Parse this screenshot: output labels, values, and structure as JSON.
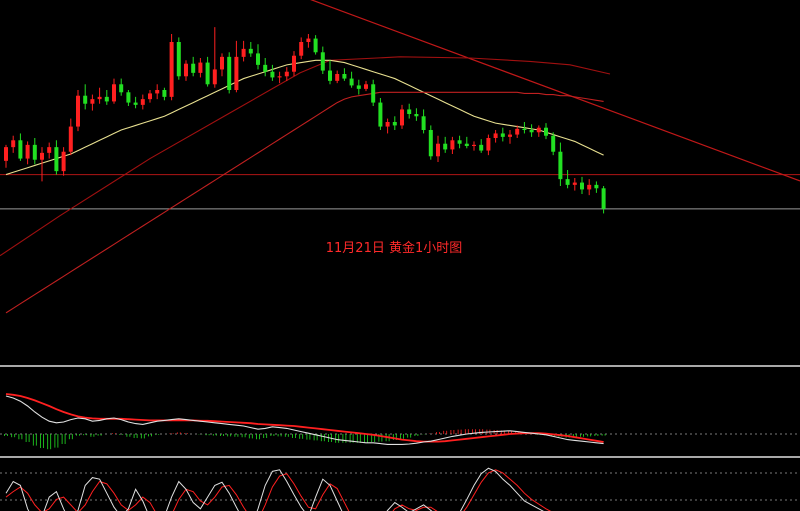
{
  "chart_data": {
    "type": "candlestick",
    "title": "11月21日 黄金1小时图",
    "colors": {
      "background": "#000000",
      "up": "#ff2020",
      "down": "#22e022",
      "ma_short": "#e8e090",
      "ma_mid": "#c02020",
      "ma_long": "#a01010",
      "trendline": "#c01818",
      "support": "#b01515",
      "level": "#9a9a9a",
      "separator": "#a8a8a8",
      "macd_dif": "#e0e0e0",
      "macd_dea": "#ff2020",
      "kdj_k": "#e0e0e0",
      "kdj_d": "#ff2020"
    },
    "price_levels": {
      "trendline_start": 1484.0,
      "trendline_end": 1468.0,
      "support": 1468.6,
      "current": 1465.6
    },
    "candles": [
      [
        1469.8,
        1471.2,
        1469.2,
        1471.0
      ],
      [
        1471.0,
        1472.0,
        1470.5,
        1471.6
      ],
      [
        1471.6,
        1472.2,
        1469.8,
        1470.0
      ],
      [
        1470.0,
        1471.5,
        1469.5,
        1471.2
      ],
      [
        1471.2,
        1471.8,
        1469.5,
        1469.9
      ],
      [
        1469.9,
        1471.0,
        1468.0,
        1470.5
      ],
      [
        1470.5,
        1471.4,
        1470.0,
        1471.0
      ],
      [
        1471.0,
        1471.6,
        1468.6,
        1468.9
      ],
      [
        1468.9,
        1471.0,
        1468.5,
        1470.6
      ],
      [
        1470.6,
        1473.5,
        1470.3,
        1472.8
      ],
      [
        1472.8,
        1476.0,
        1472.4,
        1475.5
      ],
      [
        1475.5,
        1476.5,
        1474.3,
        1474.8
      ],
      [
        1474.8,
        1475.6,
        1474.2,
        1475.2
      ],
      [
        1475.2,
        1476.2,
        1474.8,
        1475.4
      ],
      [
        1475.4,
        1476.0,
        1474.7,
        1475.0
      ],
      [
        1475.0,
        1477.0,
        1474.8,
        1476.5
      ],
      [
        1476.5,
        1477.0,
        1475.5,
        1475.8
      ],
      [
        1475.8,
        1476.0,
        1474.6,
        1474.9
      ],
      [
        1474.9,
        1475.4,
        1474.4,
        1474.7
      ],
      [
        1474.7,
        1475.6,
        1474.3,
        1475.2
      ],
      [
        1475.2,
        1476.0,
        1474.9,
        1475.7
      ],
      [
        1475.7,
        1476.5,
        1475.2,
        1476.0
      ],
      [
        1476.0,
        1476.2,
        1475.1,
        1475.4
      ],
      [
        1475.4,
        1480.9,
        1475.1,
        1480.2
      ],
      [
        1480.2,
        1480.6,
        1476.9,
        1477.2
      ],
      [
        1477.2,
        1478.6,
        1476.8,
        1478.3
      ],
      [
        1478.3,
        1478.9,
        1477.2,
        1477.5
      ],
      [
        1477.5,
        1478.8,
        1477.1,
        1478.4
      ],
      [
        1478.4,
        1478.9,
        1476.3,
        1476.5
      ],
      [
        1476.5,
        1481.5,
        1476.2,
        1477.8
      ],
      [
        1477.8,
        1479.2,
        1477.2,
        1478.9
      ],
      [
        1478.9,
        1479.3,
        1475.7,
        1476.0
      ],
      [
        1476.0,
        1480.3,
        1475.8,
        1478.9
      ],
      [
        1478.9,
        1480.3,
        1478.5,
        1479.6
      ],
      [
        1479.6,
        1480.2,
        1478.9,
        1479.2
      ],
      [
        1479.2,
        1480.0,
        1477.8,
        1478.2
      ],
      [
        1478.2,
        1478.8,
        1477.2,
        1477.6
      ],
      [
        1477.6,
        1478.2,
        1476.8,
        1477.1
      ],
      [
        1477.1,
        1477.6,
        1476.6,
        1477.2
      ],
      [
        1477.2,
        1478.0,
        1476.8,
        1477.6
      ],
      [
        1477.6,
        1479.4,
        1477.2,
        1479.0
      ],
      [
        1479.0,
        1480.6,
        1478.7,
        1480.2
      ],
      [
        1480.2,
        1480.9,
        1479.7,
        1480.5
      ],
      [
        1480.5,
        1480.8,
        1479.1,
        1479.3
      ],
      [
        1479.3,
        1479.8,
        1477.4,
        1477.7
      ],
      [
        1477.7,
        1478.6,
        1476.5,
        1476.8
      ],
      [
        1476.8,
        1477.7,
        1476.6,
        1477.4
      ],
      [
        1477.4,
        1477.9,
        1476.8,
        1477.0
      ],
      [
        1477.0,
        1477.6,
        1476.2,
        1476.4
      ],
      [
        1476.4,
        1476.9,
        1475.6,
        1476.1
      ],
      [
        1476.1,
        1476.8,
        1475.9,
        1476.5
      ],
      [
        1476.5,
        1476.9,
        1474.6,
        1474.9
      ],
      [
        1474.9,
        1475.3,
        1472.5,
        1472.8
      ],
      [
        1472.8,
        1473.5,
        1472.2,
        1473.2
      ],
      [
        1473.2,
        1473.7,
        1472.5,
        1472.9
      ],
      [
        1472.9,
        1474.7,
        1472.6,
        1474.3
      ],
      [
        1474.3,
        1474.8,
        1473.5,
        1473.9
      ],
      [
        1473.9,
        1474.4,
        1473.3,
        1473.7
      ],
      [
        1473.7,
        1474.3,
        1472.2,
        1472.5
      ],
      [
        1472.5,
        1472.9,
        1469.9,
        1470.2
      ],
      [
        1470.2,
        1472.0,
        1469.7,
        1471.3
      ],
      [
        1471.3,
        1471.9,
        1470.5,
        1470.8
      ],
      [
        1470.8,
        1471.9,
        1470.4,
        1471.6
      ],
      [
        1471.6,
        1472.0,
        1470.9,
        1471.3
      ],
      [
        1471.3,
        1471.9,
        1470.9,
        1471.1
      ],
      [
        1471.1,
        1471.5,
        1470.7,
        1471.2
      ],
      [
        1471.2,
        1471.7,
        1470.5,
        1470.7
      ],
      [
        1470.7,
        1472.1,
        1470.3,
        1471.8
      ],
      [
        1471.8,
        1472.5,
        1471.4,
        1472.2
      ],
      [
        1472.2,
        1472.7,
        1471.5,
        1471.9
      ],
      [
        1471.9,
        1472.5,
        1471.3,
        1472.1
      ],
      [
        1472.1,
        1472.9,
        1471.8,
        1472.6
      ],
      [
        1472.6,
        1473.2,
        1472.2,
        1472.5
      ],
      [
        1472.5,
        1473.0,
        1471.9,
        1472.3
      ],
      [
        1472.3,
        1472.9,
        1471.9,
        1472.7
      ],
      [
        1472.7,
        1473.1,
        1471.7,
        1472.0
      ],
      [
        1472.0,
        1472.3,
        1470.3,
        1470.6
      ],
      [
        1470.6,
        1471.4,
        1467.6,
        1468.2
      ],
      [
        1468.2,
        1469.0,
        1467.4,
        1467.7
      ],
      [
        1467.7,
        1468.3,
        1467.2,
        1467.9
      ],
      [
        1467.9,
        1468.4,
        1466.9,
        1467.3
      ],
      [
        1467.3,
        1468.2,
        1466.8,
        1467.7
      ],
      [
        1467.7,
        1468.0,
        1467.0,
        1467.4
      ],
      [
        1467.4,
        1467.6,
        1465.2,
        1465.6
      ]
    ],
    "series": [
      {
        "key": "ma_short",
        "values": [
          1468.6,
          1468.8,
          1469.0,
          1469.2,
          1469.4,
          1469.6,
          1469.8,
          1470.0,
          1470.2,
          1470.4,
          1470.7,
          1471.0,
          1471.3,
          1471.6,
          1471.9,
          1472.2,
          1472.5,
          1472.7,
          1472.9,
          1473.1,
          1473.3,
          1473.5,
          1473.7,
          1474.0,
          1474.3,
          1474.6,
          1474.9,
          1475.2,
          1475.5,
          1475.8,
          1476.1,
          1476.4,
          1476.7,
          1477.0,
          1477.2,
          1477.4,
          1477.6,
          1477.8,
          1478.0,
          1478.2,
          1478.3,
          1478.4,
          1478.5,
          1478.6,
          1478.6,
          1478.6,
          1478.5,
          1478.4,
          1478.2,
          1478.0,
          1477.8,
          1477.6,
          1477.4,
          1477.2,
          1477.0,
          1476.7,
          1476.4,
          1476.1,
          1475.8,
          1475.5,
          1475.2,
          1474.9,
          1474.6,
          1474.3,
          1474.0,
          1473.7,
          1473.5,
          1473.3,
          1473.1,
          1473.0,
          1472.9,
          1472.8,
          1472.7,
          1472.6,
          1472.5,
          1472.3,
          1472.1,
          1471.9,
          1471.7,
          1471.5,
          1471.2,
          1470.9,
          1470.6,
          1470.3
        ]
      },
      {
        "key": "ma_mid",
        "values": [
          1456.5,
          1456.9,
          1457.3,
          1457.7,
          1458.1,
          1458.5,
          1458.9,
          1459.3,
          1459.7,
          1460.1,
          1460.5,
          1460.9,
          1461.3,
          1461.7,
          1462.1,
          1462.5,
          1462.9,
          1463.3,
          1463.7,
          1464.1,
          1464.5,
          1464.9,
          1465.3,
          1465.7,
          1466.1,
          1466.5,
          1466.9,
          1467.3,
          1467.7,
          1468.1,
          1468.5,
          1468.9,
          1469.3,
          1469.7,
          1470.1,
          1470.5,
          1470.9,
          1471.3,
          1471.7,
          1472.1,
          1472.5,
          1472.9,
          1473.3,
          1473.7,
          1474.1,
          1474.5,
          1474.9,
          1475.2,
          1475.4,
          1475.5,
          1475.6,
          1475.7,
          1475.8,
          1475.8,
          1475.8,
          1475.8,
          1475.8,
          1475.8,
          1475.8,
          1475.8,
          1475.8,
          1475.8,
          1475.8,
          1475.8,
          1475.8,
          1475.8,
          1475.8,
          1475.8,
          1475.8,
          1475.8,
          1475.8,
          1475.8,
          1475.7,
          1475.7,
          1475.7,
          1475.6,
          1475.6,
          1475.5,
          1475.5,
          1475.4,
          1475.3,
          1475.2,
          1475.1,
          1475.0
        ]
      }
    ],
    "macd": {
      "dif": [
        0.95,
        0.9,
        0.82,
        0.7,
        0.55,
        0.42,
        0.32,
        0.28,
        0.3,
        0.36,
        0.4,
        0.38,
        0.32,
        0.34,
        0.38,
        0.4,
        0.36,
        0.3,
        0.26,
        0.24,
        0.28,
        0.32,
        0.34,
        0.36,
        0.38,
        0.36,
        0.34,
        0.32,
        0.3,
        0.28,
        0.26,
        0.24,
        0.22,
        0.2,
        0.16,
        0.12,
        0.14,
        0.18,
        0.16,
        0.14,
        0.1,
        0.06,
        0.02,
        -0.02,
        -0.06,
        -0.1,
        -0.14,
        -0.16,
        -0.18,
        -0.2,
        -0.22,
        -0.22,
        -0.24,
        -0.26,
        -0.26,
        -0.26,
        -0.25,
        -0.23,
        -0.2,
        -0.18,
        -0.14,
        -0.1,
        -0.06,
        -0.03,
        0.0,
        0.02,
        0.04,
        0.05,
        0.06,
        0.07,
        0.08,
        0.06,
        0.04,
        0.02,
        0.0,
        -0.02,
        -0.06,
        -0.1,
        -0.14,
        -0.16,
        -0.18,
        -0.2,
        -0.22,
        -0.24
      ],
      "dea": [
        1.0,
        0.98,
        0.95,
        0.9,
        0.84,
        0.77,
        0.7,
        0.62,
        0.55,
        0.49,
        0.44,
        0.41,
        0.39,
        0.38,
        0.38,
        0.38,
        0.38,
        0.37,
        0.36,
        0.35,
        0.34,
        0.34,
        0.34,
        0.34,
        0.34,
        0.34,
        0.34,
        0.33,
        0.33,
        0.32,
        0.31,
        0.3,
        0.29,
        0.28,
        0.27,
        0.25,
        0.24,
        0.23,
        0.22,
        0.21,
        0.2,
        0.18,
        0.16,
        0.14,
        0.12,
        0.1,
        0.08,
        0.06,
        0.04,
        0.02,
        0.0,
        -0.02,
        -0.05,
        -0.08,
        -0.11,
        -0.14,
        -0.16,
        -0.18,
        -0.19,
        -0.19,
        -0.19,
        -0.18,
        -0.16,
        -0.14,
        -0.12,
        -0.1,
        -0.08,
        -0.06,
        -0.04,
        -0.02,
        0.0,
        0.01,
        0.02,
        0.02,
        0.02,
        0.01,
        -0.01,
        -0.03,
        -0.05,
        -0.08,
        -0.11,
        -0.14,
        -0.17,
        -0.2
      ]
    },
    "kdj": {
      "k": [
        60,
        75,
        70,
        40,
        22,
        30,
        55,
        62,
        40,
        20,
        38,
        70,
        80,
        78,
        60,
        42,
        30,
        40,
        65,
        50,
        28,
        12,
        30,
        55,
        75,
        65,
        48,
        40,
        55,
        70,
        74,
        60,
        42,
        25,
        15,
        40,
        70,
        88,
        90,
        75,
        58,
        42,
        30,
        55,
        78,
        70,
        50,
        30,
        18,
        12,
        10,
        15,
        25,
        38,
        48,
        42,
        35,
        40,
        45,
        38,
        30,
        26,
        28,
        35,
        52,
        70,
        85,
        92,
        88,
        78,
        70,
        60,
        50,
        45,
        40,
        35,
        30,
        28,
        25,
        22,
        20,
        18,
        16,
        15
      ],
      "d": [
        55,
        62,
        68,
        60,
        45,
        35,
        40,
        52,
        55,
        45,
        35,
        45,
        62,
        75,
        72,
        60,
        45,
        38,
        45,
        55,
        48,
        32,
        22,
        32,
        52,
        65,
        62,
        50,
        45,
        55,
        68,
        70,
        58,
        42,
        28,
        25,
        45,
        68,
        82,
        85,
        72,
        56,
        42,
        40,
        58,
        72,
        66,
        48,
        30,
        18,
        13,
        12,
        18,
        28,
        40,
        45,
        40,
        38,
        42,
        42,
        36,
        30,
        27,
        30,
        42,
        58,
        74,
        86,
        90,
        86,
        78,
        70,
        60,
        52,
        46,
        40,
        35,
        31,
        28,
        25,
        22,
        20,
        18,
        16
      ]
    }
  }
}
